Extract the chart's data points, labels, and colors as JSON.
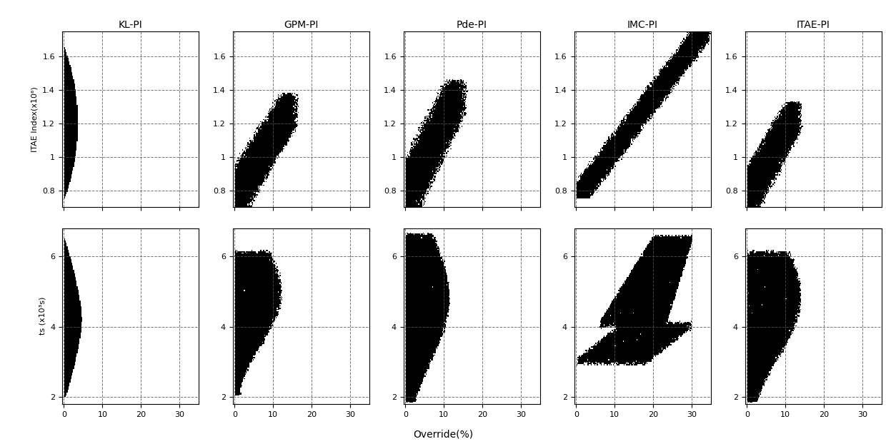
{
  "col_titles": [
    "KL-PI",
    "GPM-PI",
    "Pde-PI",
    "IMC-PI",
    "ITAE-PI"
  ],
  "row0_ylabel": "ITAE Index(x10⁶)",
  "row1_ylabel": "ts (x10³s)",
  "xlabel": "Override(%)",
  "row0_ylim": [
    0.7,
    1.75
  ],
  "row1_ylim": [
    1.8,
    6.8
  ],
  "row0_yticks": [
    0.8,
    1.0,
    1.2,
    1.4,
    1.6
  ],
  "row1_yticks": [
    2,
    4,
    6
  ],
  "xlim": [
    -0.5,
    35
  ],
  "xticks": [
    0,
    10,
    20,
    30
  ],
  "background_color": "#ffffff",
  "fill_color": "#000000",
  "title_fontsize": 10,
  "label_fontsize": 8,
  "ylabel0_fontsize": 8,
  "ylabel1_fontsize": 8
}
